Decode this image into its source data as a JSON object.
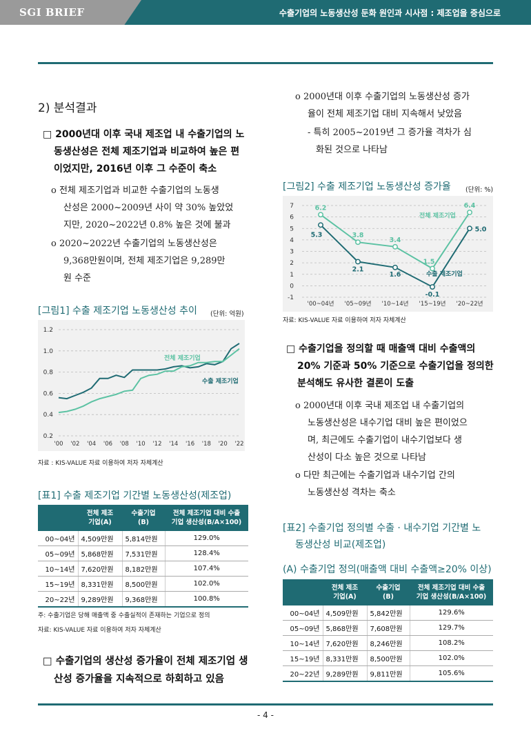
{
  "header": {
    "brand": "SGI BRIEF",
    "title": "수출기업의 노동생산성 둔화 원인과 시사점 : 제조업을 중심으로"
  },
  "left": {
    "section": "2) 분석결과",
    "bullet1_line1": "□ 2000년대 이후 국내 제조업 내 수출기업의 노",
    "bullet1_line2": "동생산성은 전체 제조기업과 비교하여 높은 편",
    "bullet1_line3": "이었지만, 2016년 이후 그 수준이 축소",
    "sub1_line1": "o 전체 제조기업과 비교한 수출기업의 노동생",
    "sub1_line2": "산성은 2000~2009년 사이 약 30% 높았었",
    "sub1_line3": "지만, 2020~2022년 0.8% 높은 것에 불과",
    "sub2_line1": "o 2020~2022년 수출기업의 노동생산성은",
    "sub2_line2": "9,368만원이며, 전체 제조기업은 9,289만",
    "sub2_line3": "원 수준",
    "fig1_title": "[그림1] 수출 제조기업 노동생산성 추이",
    "fig1_unit": "(단위: 억원)",
    "fig1_source": "자료 : KIS-VALUE 자료 이용하여 저자 자체계산",
    "table1_title": "[표1] 수출 제조기업 기간별 노동생산성(제조업)",
    "table_headers": [
      "",
      "전체 제조\n기업(A)",
      "수출기업\n(B)",
      "전체 제조기업 대비 수출\n기업 생산성(B/A×100)"
    ],
    "table1_rows": [
      [
        "00~04년",
        "4,509만원",
        "5,814만원",
        "129.0%"
      ],
      [
        "05~09년",
        "5,868만원",
        "7,531만원",
        "128.4%"
      ],
      [
        "10~14년",
        "7,620만원",
        "8,182만원",
        "107.4%"
      ],
      [
        "15~19년",
        "8,331만원",
        "8,500만원",
        "102.0%"
      ],
      [
        "20~22년",
        "9,289만원",
        "9,368만원",
        "100.8%"
      ]
    ],
    "table1_note": "주: 수출기업은 당해 매출액 중 수출실적이 존재하는 기업으로 정의",
    "table1_source": "자료: KIS-VALUE 자료 이용하여 저자 자체계산",
    "bullet2_line1": "□ 수출기업의 생산성 증가율이 전체 제조기업 생",
    "bullet2_line2": "산성 증가율을 지속적으로 하회하고 있음"
  },
  "right": {
    "sub3_line1": "o 2000년대 이후 수출기업의 노동생산성 증가",
    "sub3_line2": "율이 전체 제조기업 대비 지속해서 낮았음",
    "dash1_line1": "- 특히 2005~2019년 그 증가율 격차가 심",
    "dash1_line2": "화된 것으로 나타남",
    "fig2_title": "[그림2] 수출 제조기업 노동생산성 증가율",
    "fig2_unit": "(단위: %)",
    "fig2_source": "자료: KIS-VALUE 자료 이용하여 저자 자체계산",
    "bullet3_line1": "□ 수출기업을 정의할 때 매출액 대비 수출액의",
    "bullet3_line2": "20% 기준과 50% 기준으로 수출기업을 정의한",
    "bullet3_line3": "분석해도 유사한 결론이 도출",
    "sub4_line1": "o 2000년대 이후 국내 제조업 내 수출기업의",
    "sub4_line2": "노동생산성은 내수기업 대비 높은 편이었으",
    "sub4_line3": "며, 최근에도 수출기업이 내수기업보다 생",
    "sub4_line4": "산성이 다소 높은 것으로 나타남",
    "sub5_line1": "o 다만 최근에는 수출기업과 내수기업 간의",
    "sub5_line2": "노동생산성 격차는 축소",
    "table2_title_line1": "[표2] 수출기업 정의별 수출 · 내수기업 기간별 노",
    "table2_title_line2": "동생산성 비교(제조업)",
    "table2_subtitle": "(A) 수출기업 정의(매출액 대비 수출액≥20% 이상)",
    "table2_rows": [
      [
        "00~04년",
        "4,509만원",
        "5,842만원",
        "129.6%"
      ],
      [
        "05~09년",
        "5,868만원",
        "7,608만원",
        "129.7%"
      ],
      [
        "10~14년",
        "7,620만원",
        "8,246만원",
        "108.2%"
      ],
      [
        "15~19년",
        "8,331만원",
        "8,500만원",
        "102.0%"
      ],
      [
        "20~22년",
        "9,289만원",
        "9,811만원",
        "105.6%"
      ]
    ]
  },
  "page_number": "- 4 -",
  "colors": {
    "teal": "#1f6b73",
    "light_teal": "#5cc2a3",
    "gray": "#9a9a9a"
  },
  "chart_data": [
    {
      "type": "line",
      "title": "[그림1] 수출 제조기업 노동생산성 추이",
      "x": [
        "'00",
        "'01",
        "'02",
        "'03",
        "'04",
        "'05",
        "'06",
        "'07",
        "'08",
        "'09",
        "'10",
        "'11",
        "'12",
        "'13",
        "'14",
        "'15",
        "'16",
        "'17",
        "'18",
        "'19",
        "'20",
        "'21",
        "'22"
      ],
      "x_tick_labels": [
        "'00",
        "'02",
        "'04",
        "'06",
        "'08",
        "'10",
        "'12",
        "'14",
        "'16",
        "'18",
        "'20",
        "'22"
      ],
      "ylim": [
        0.2,
        1.2
      ],
      "yticks": [
        "0.2",
        "0.4",
        "0.6",
        "0.8",
        "1.0",
        "1.2"
      ],
      "series": [
        {
          "name": "수출 제조기업",
          "color": "#1f6b73",
          "values": [
            0.56,
            0.55,
            0.58,
            0.61,
            0.65,
            0.74,
            0.74,
            0.77,
            0.75,
            0.82,
            0.82,
            0.82,
            0.82,
            0.83,
            0.85,
            0.86,
            0.84,
            0.85,
            0.88,
            0.87,
            0.9,
            1.02,
            1.07
          ]
        },
        {
          "name": "전체 제조기업",
          "color": "#5cc2a3",
          "values": [
            0.42,
            0.43,
            0.45,
            0.48,
            0.52,
            0.55,
            0.57,
            0.59,
            0.62,
            0.63,
            0.74,
            0.77,
            0.78,
            0.81,
            0.81,
            0.85,
            0.86,
            0.89,
            0.89,
            0.9,
            0.9,
            0.96,
            1.02
          ]
        }
      ],
      "grid": true
    },
    {
      "type": "line",
      "title": "[그림2] 수출 제조기업 노동생산성 증가율",
      "categories": [
        "'00~04년",
        "'05~09년",
        "'10~14년",
        "'15~19년",
        "'20~22년"
      ],
      "ylim": [
        -1,
        7
      ],
      "yticks": [
        "-1",
        "0",
        "1",
        "2",
        "3",
        "4",
        "5",
        "6",
        "7"
      ],
      "series": [
        {
          "name": "전체 제조기업",
          "color": "#5cc2a3",
          "values": [
            6.2,
            3.8,
            3.4,
            1.5,
            6.4
          ],
          "labels": [
            "6.2",
            "3.8",
            "3.4",
            "1.5",
            "6.4"
          ]
        },
        {
          "name": "수출 제조기업",
          "color": "#1f6b73",
          "values": [
            5.3,
            2.1,
            1.6,
            -0.1,
            5.0
          ],
          "labels": [
            "5.3",
            "2.1",
            "1.6",
            "-0.1",
            "5.0"
          ]
        }
      ],
      "grid": true
    }
  ]
}
